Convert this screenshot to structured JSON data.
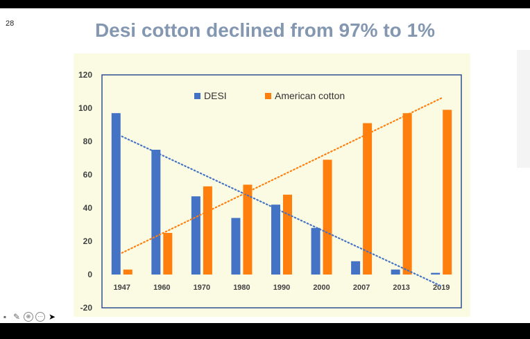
{
  "slide": {
    "number": "28",
    "title": "Desi cotton declined from 97% to 1%"
  },
  "colors": {
    "desi": "#4472c4",
    "american": "#ff7f0e",
    "panel": "#fbfbe4",
    "axis_text": "#404040"
  },
  "toolbar": {
    "icons": [
      "square-icon",
      "pen-icon",
      "zoom-icon",
      "more-icon",
      "pointer-icon"
    ]
  },
  "chart_data": {
    "type": "bar",
    "title": "",
    "xlabel": "",
    "ylabel": "",
    "categories": [
      "1947",
      "1960",
      "1970",
      "1980",
      "1990",
      "2000",
      "2007",
      "2013",
      "2019"
    ],
    "series": [
      {
        "name": "DESI",
        "values": [
          97,
          75,
          47,
          34,
          42,
          28,
          8,
          3,
          1
        ]
      },
      {
        "name": "American cotton",
        "values": [
          3,
          25,
          53,
          54,
          48,
          69,
          91,
          97,
          99
        ]
      }
    ],
    "trendlines": [
      {
        "series": "DESI",
        "style": "dotted",
        "start": 83,
        "end": -7
      },
      {
        "series": "American cotton",
        "style": "dotted",
        "start": 13,
        "end": 106
      }
    ],
    "ylim": [
      -20,
      120
    ],
    "yticks": [
      "120",
      "100",
      "80",
      "60",
      "40",
      "20",
      "0",
      "-20"
    ],
    "legend_position": "top-center",
    "grid": false
  }
}
